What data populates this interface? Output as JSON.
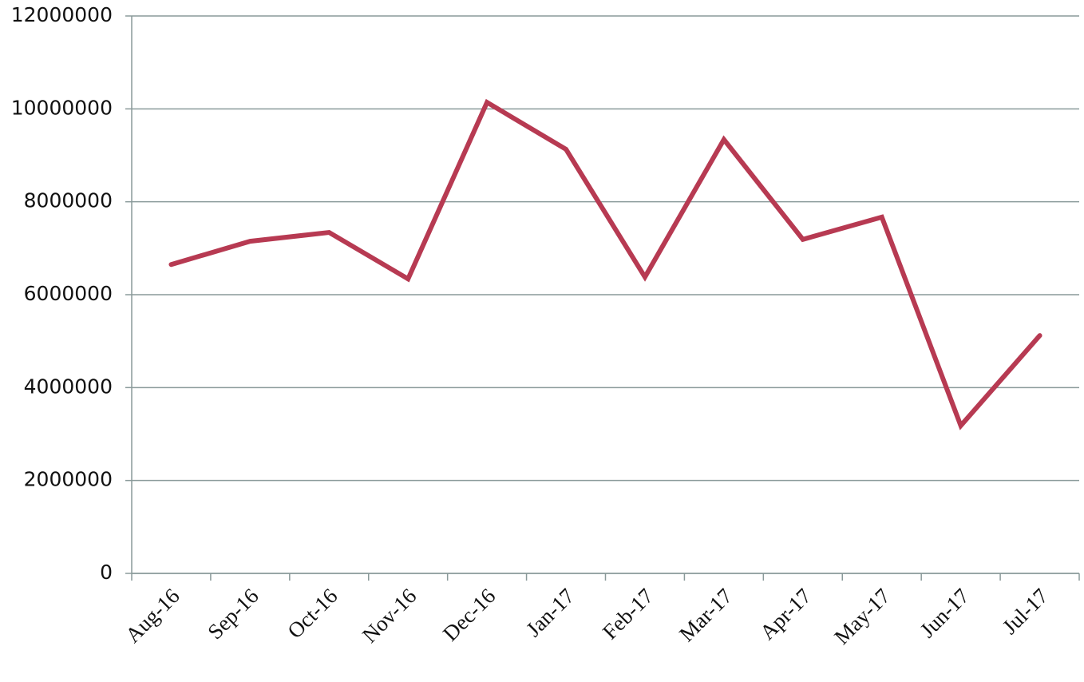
{
  "chart_data": {
    "type": "line",
    "categories": [
      "Aug-16",
      "Sep-16",
      "Oct-16",
      "Nov-16",
      "Dec-16",
      "Jan-17",
      "Feb-17",
      "Mar-17",
      "Apr-17",
      "May-17",
      "Jun-17",
      "Jul-17"
    ],
    "values": [
      6650000,
      7150000,
      7340000,
      6340000,
      10140000,
      9130000,
      6380000,
      9340000,
      7190000,
      7670000,
      3180000,
      5120000
    ],
    "color": "#b73a52",
    "ylim": [
      0,
      12000000
    ],
    "yticks": [
      0,
      2000000,
      4000000,
      6000000,
      8000000,
      10000000,
      12000000
    ],
    "grid": true
  }
}
